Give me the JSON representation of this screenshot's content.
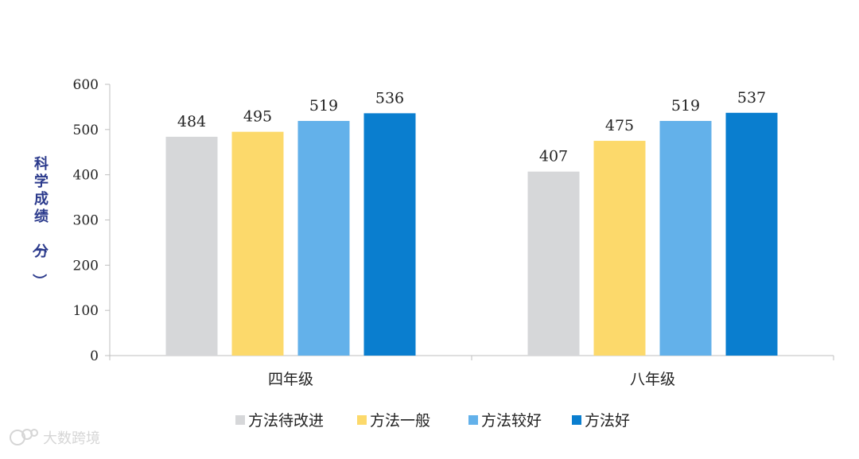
{
  "chart_data": {
    "type": "bar",
    "categories": [
      "四年级",
      "八年级"
    ],
    "series": [
      {
        "name": "方法待改进",
        "values": [
          484,
          407
        ],
        "color": "#d6d7d9"
      },
      {
        "name": "方法一般",
        "values": [
          495,
          475
        ],
        "color": "#fcd96b"
      },
      {
        "name": "方法较好",
        "values": [
          519,
          519
        ],
        "color": "#63b1ea"
      },
      {
        "name": "方法好",
        "values": [
          536,
          537
        ],
        "color": "#0a7ecf"
      }
    ],
    "ylabel": "科学成绩（分）",
    "ylim": [
      0,
      600
    ],
    "yticks": [
      0,
      100,
      200,
      300,
      400,
      500,
      600
    ],
    "grid": false,
    "legend": "bottom"
  },
  "watermark": {
    "text": "大数跨境"
  }
}
